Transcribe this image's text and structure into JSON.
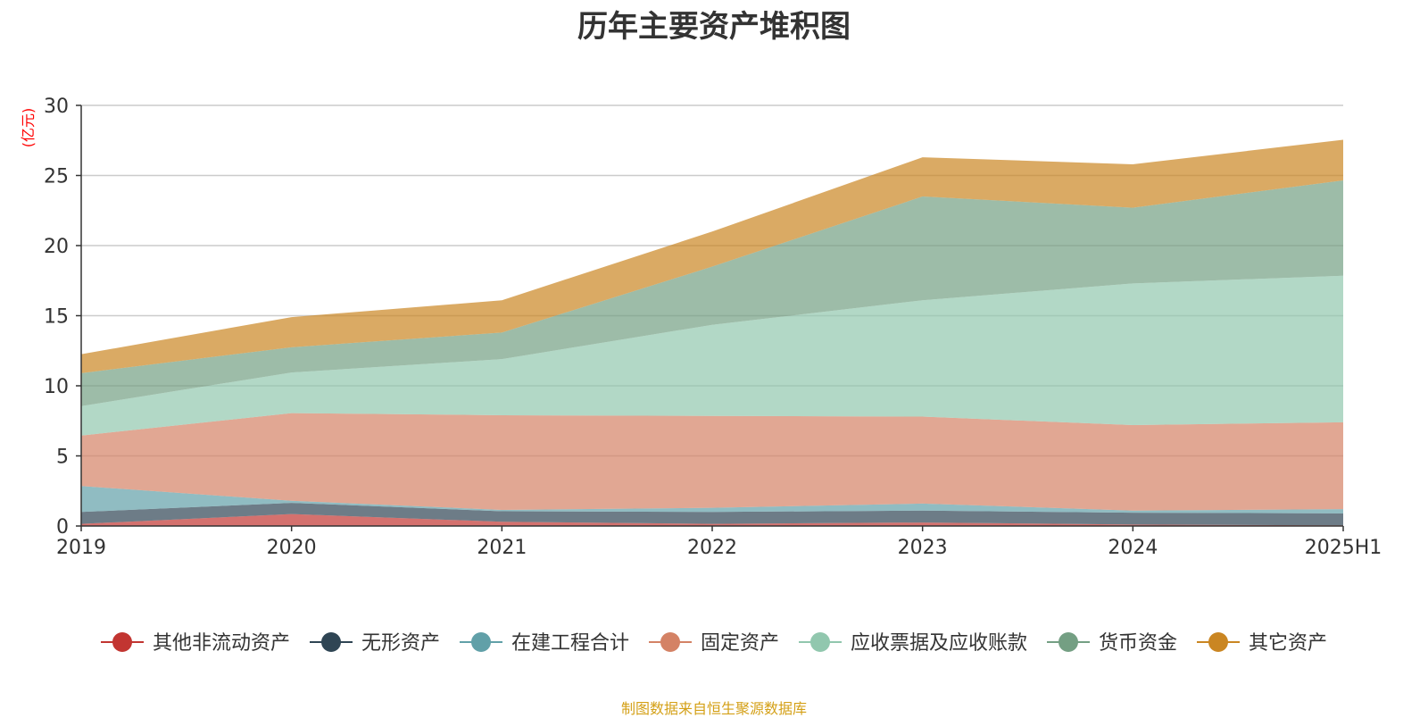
{
  "chart_data": {
    "type": "area",
    "title": "历年主要资产堆积图",
    "ylabel": "(亿元)",
    "categories": [
      "2019",
      "2020",
      "2021",
      "2022",
      "2023",
      "2024",
      "2025H1"
    ],
    "ylim": [
      0,
      30
    ],
    "yticks": [
      0,
      5,
      10,
      15,
      20,
      25,
      30
    ],
    "grid": true,
    "stacked": true,
    "legend_position": "bottom",
    "series": [
      {
        "name": "其他非流动资产",
        "color": "#c23531",
        "values": [
          0.15,
          0.85,
          0.3,
          0.15,
          0.25,
          0.1,
          0.05
        ]
      },
      {
        "name": "无形资产",
        "color": "#2f4554",
        "values": [
          0.85,
          0.8,
          0.75,
          0.85,
          0.85,
          0.85,
          0.85
        ]
      },
      {
        "name": "在建工程合计",
        "color": "#61a0a8",
        "values": [
          1.85,
          0.15,
          0.1,
          0.3,
          0.5,
          0.15,
          0.3
        ]
      },
      {
        "name": "固定资产",
        "color": "#d48265",
        "values": [
          3.6,
          6.25,
          6.75,
          6.55,
          6.2,
          6.1,
          6.2
        ]
      },
      {
        "name": "应收票据及应收账款",
        "color": "#91c7ae",
        "values": [
          2.1,
          2.9,
          4.0,
          6.5,
          8.3,
          10.1,
          10.45
        ]
      },
      {
        "name": "货币资金",
        "color": "#749f83",
        "values": [
          2.35,
          1.8,
          1.9,
          4.15,
          7.4,
          5.4,
          6.8
        ]
      },
      {
        "name": "其它资产",
        "color": "#ca8622",
        "values": [
          1.35,
          2.15,
          2.3,
          2.5,
          2.8,
          3.1,
          2.9
        ]
      }
    ]
  },
  "source_note": "制图数据来自恒生聚源数据库"
}
